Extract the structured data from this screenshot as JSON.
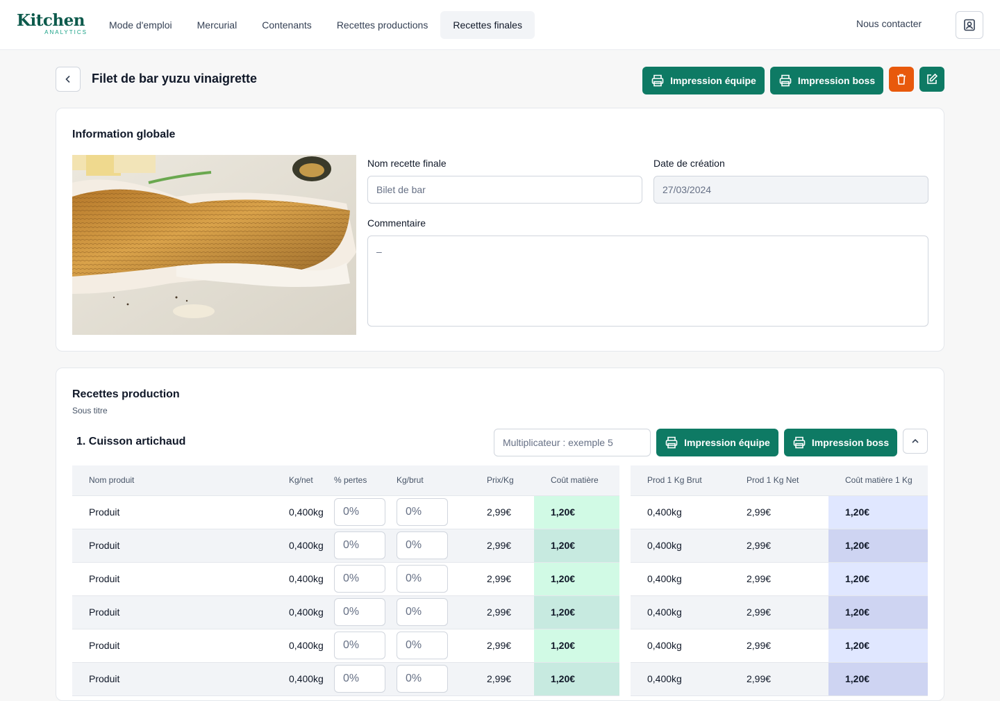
{
  "header": {
    "logo_main": "Kitchen",
    "logo_sub": "ANALYTICS",
    "nav": [
      {
        "label": "Mode d'emploi",
        "active": false
      },
      {
        "label": "Mercurial",
        "active": false
      },
      {
        "label": "Contenants",
        "active": false
      },
      {
        "label": "Recettes productions",
        "active": false
      },
      {
        "label": "Recettes finales",
        "active": true
      }
    ],
    "contact_label": "Nous contacter"
  },
  "page": {
    "title": "Filet de bar yuzu vinaigrette",
    "print_team_label": "Impression équipe",
    "print_boss_label": "Impression boss",
    "colors": {
      "primary": "#0e7a64",
      "danger": "#e8590c"
    }
  },
  "info": {
    "title": "Information globale",
    "name_label": "Nom recette finale",
    "name_value": "Bilet de bar",
    "date_label": "Date de création",
    "date_value": "27/03/2024",
    "comment_label": "Commentaire",
    "comment_value": "–"
  },
  "production": {
    "title": "Recettes production",
    "subtitle": "Sous titre",
    "section_title": "1. Cuisson artichaud",
    "multiplier_placeholder": "Multiplicateur : exemple 5",
    "print_team_label": "Impression équipe",
    "print_boss_label": "Impression boss",
    "left_columns": [
      "Nom produit",
      "Kg/net",
      "% pertes",
      "Kg/brut",
      "Prix/Kg",
      "Coût matière"
    ],
    "right_columns": [
      "Prod 1 Kg Brut",
      "Prod 1 Kg Net",
      "Coût matière 1 Kg"
    ],
    "rows": [
      {
        "name": "Produit",
        "kg_net": "0,400kg",
        "pertes": "0%",
        "kg_brut": "0%",
        "prix": "2,99€",
        "cout": "1,20€",
        "prod_brut": "0,400kg",
        "prod_net": "2,99€",
        "cout_1kg": "1,20€"
      },
      {
        "name": "Produit",
        "kg_net": "0,400kg",
        "pertes": "0%",
        "kg_brut": "0%",
        "prix": "2,99€",
        "cout": "1,20€",
        "prod_brut": "0,400kg",
        "prod_net": "2,99€",
        "cout_1kg": "1,20€"
      },
      {
        "name": "Produit",
        "kg_net": "0,400kg",
        "pertes": "0%",
        "kg_brut": "0%",
        "prix": "2,99€",
        "cout": "1,20€",
        "prod_brut": "0,400kg",
        "prod_net": "2,99€",
        "cout_1kg": "1,20€"
      },
      {
        "name": "Produit",
        "kg_net": "0,400kg",
        "pertes": "0%",
        "kg_brut": "0%",
        "prix": "2,99€",
        "cout": "1,20€",
        "prod_brut": "0,400kg",
        "prod_net": "2,99€",
        "cout_1kg": "1,20€"
      },
      {
        "name": "Produit",
        "kg_net": "0,400kg",
        "pertes": "0%",
        "kg_brut": "0%",
        "prix": "2,99€",
        "cout": "1,20€",
        "prod_brut": "0,400kg",
        "prod_net": "2,99€",
        "cout_1kg": "1,20€"
      },
      {
        "name": "Produit",
        "kg_net": "0,400kg",
        "pertes": "0%",
        "kg_brut": "0%",
        "prix": "2,99€",
        "cout": "1,20€",
        "prod_brut": "0,400kg",
        "prod_net": "2,99€",
        "cout_1kg": "1,20€"
      }
    ]
  }
}
